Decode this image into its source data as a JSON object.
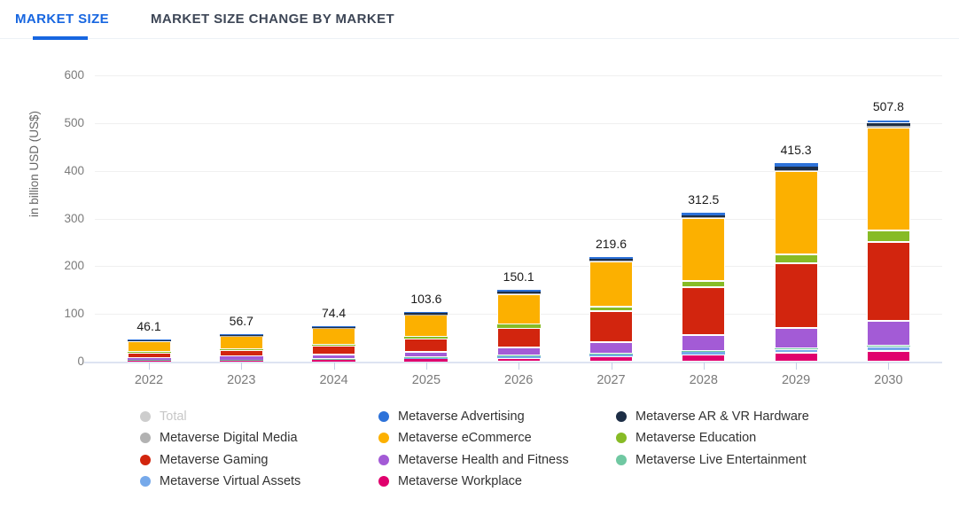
{
  "tabs": {
    "market_size": "MARKET SIZE",
    "change_by_market": "MARKET SIZE CHANGE BY MARKET"
  },
  "accent_color": "#1766e0",
  "chart_data": {
    "type": "bar",
    "stacked": true,
    "ylabel": "in billion USD (US$)",
    "xlabel": "",
    "ylim": [
      0,
      600
    ],
    "yticks": [
      0,
      100,
      200,
      300,
      400,
      500,
      600
    ],
    "grid": true,
    "legend_position": "bottom",
    "categories": [
      "2022",
      "2023",
      "2024",
      "2025",
      "2026",
      "2027",
      "2028",
      "2029",
      "2030"
    ],
    "totals": [
      46.1,
      56.7,
      74.4,
      103.6,
      150.1,
      219.6,
      312.5,
      415.3,
      507.8
    ],
    "stack_note": "series listed bottom-to-top; values estimated from bar segment heights, sums match labeled totals",
    "series": [
      {
        "name": "Metaverse Workplace",
        "color": "#e0006d",
        "values": [
          2.2,
          2.8,
          3.8,
          5.4,
          7.8,
          11.0,
          14.5,
          18.5,
          23.0
        ]
      },
      {
        "name": "Metaverse Virtual Assets",
        "color": "#76a9ea",
        "values": [
          1.0,
          1.2,
          1.7,
          2.4,
          3.5,
          5.0,
          6.5,
          8.0,
          9.5
        ]
      },
      {
        "name": "Metaverse Live Entertainment",
        "color": "#70c8a2",
        "values": [
          0.4,
          0.5,
          0.6,
          0.8,
          1.0,
          1.2,
          1.4,
          1.6,
          1.8
        ]
      },
      {
        "name": "Metaverse Health and Fitness",
        "color": "#a35bd6",
        "values": [
          4.6,
          5.8,
          8.2,
          11.7,
          16.8,
          23.5,
          33.0,
          43.0,
          52.0
        ]
      },
      {
        "name": "Metaverse Gaming",
        "color": "#d2250e",
        "values": [
          10.5,
          13.4,
          18.6,
          27.5,
          42.0,
          65.0,
          100.0,
          135.0,
          165.0
        ]
      },
      {
        "name": "Metaverse Education",
        "color": "#87bb26",
        "values": [
          1.6,
          2.1,
          3.0,
          4.6,
          7.0,
          10.0,
          14.0,
          19.0,
          24.0
        ]
      },
      {
        "name": "Metaverse eCommerce",
        "color": "#fcb000",
        "values": [
          23.0,
          27.5,
          34.0,
          45.8,
          64.0,
          94.0,
          131.0,
          175.0,
          216.0
        ]
      },
      {
        "name": "Metaverse Digital Media",
        "color": "#b2b2b2",
        "values": [
          0.6,
          0.7,
          0.8,
          1.0,
          1.2,
          1.4,
          1.6,
          1.8,
          2.0
        ]
      },
      {
        "name": "Metaverse AR & VR Hardware",
        "color": "#1d2e46",
        "values": [
          1.2,
          1.4,
          1.9,
          2.2,
          3.3,
          4.0,
          5.0,
          6.4,
          7.0
        ]
      },
      {
        "name": "Metaverse Advertising",
        "color": "#2d72d9",
        "values": [
          1.0,
          1.3,
          1.8,
          2.2,
          3.5,
          4.5,
          5.5,
          7.0,
          7.5
        ]
      }
    ],
    "legend_columns": [
      [
        {
          "label": "Total",
          "color": "#cdcdcd",
          "muted": true
        },
        {
          "label": "Metaverse Digital Media",
          "color": "#b2b2b2",
          "muted": false
        },
        {
          "label": "Metaverse Gaming",
          "color": "#d2250e",
          "muted": false
        },
        {
          "label": "Metaverse Virtual Assets",
          "color": "#76a9ea",
          "muted": false
        }
      ],
      [
        {
          "label": "Metaverse Advertising",
          "color": "#2d72d9",
          "muted": false
        },
        {
          "label": "Metaverse eCommerce",
          "color": "#fcb000",
          "muted": false
        },
        {
          "label": "Metaverse Health and Fitness",
          "color": "#a35bd6",
          "muted": false
        },
        {
          "label": "Metaverse Workplace",
          "color": "#e0006d",
          "muted": false
        }
      ],
      [
        {
          "label": "Metaverse AR & VR Hardware",
          "color": "#1d2e46",
          "muted": false
        },
        {
          "label": "Metaverse Education",
          "color": "#87bb26",
          "muted": false
        },
        {
          "label": "Metaverse Live Entertainment",
          "color": "#70c8a2",
          "muted": false
        }
      ]
    ]
  }
}
